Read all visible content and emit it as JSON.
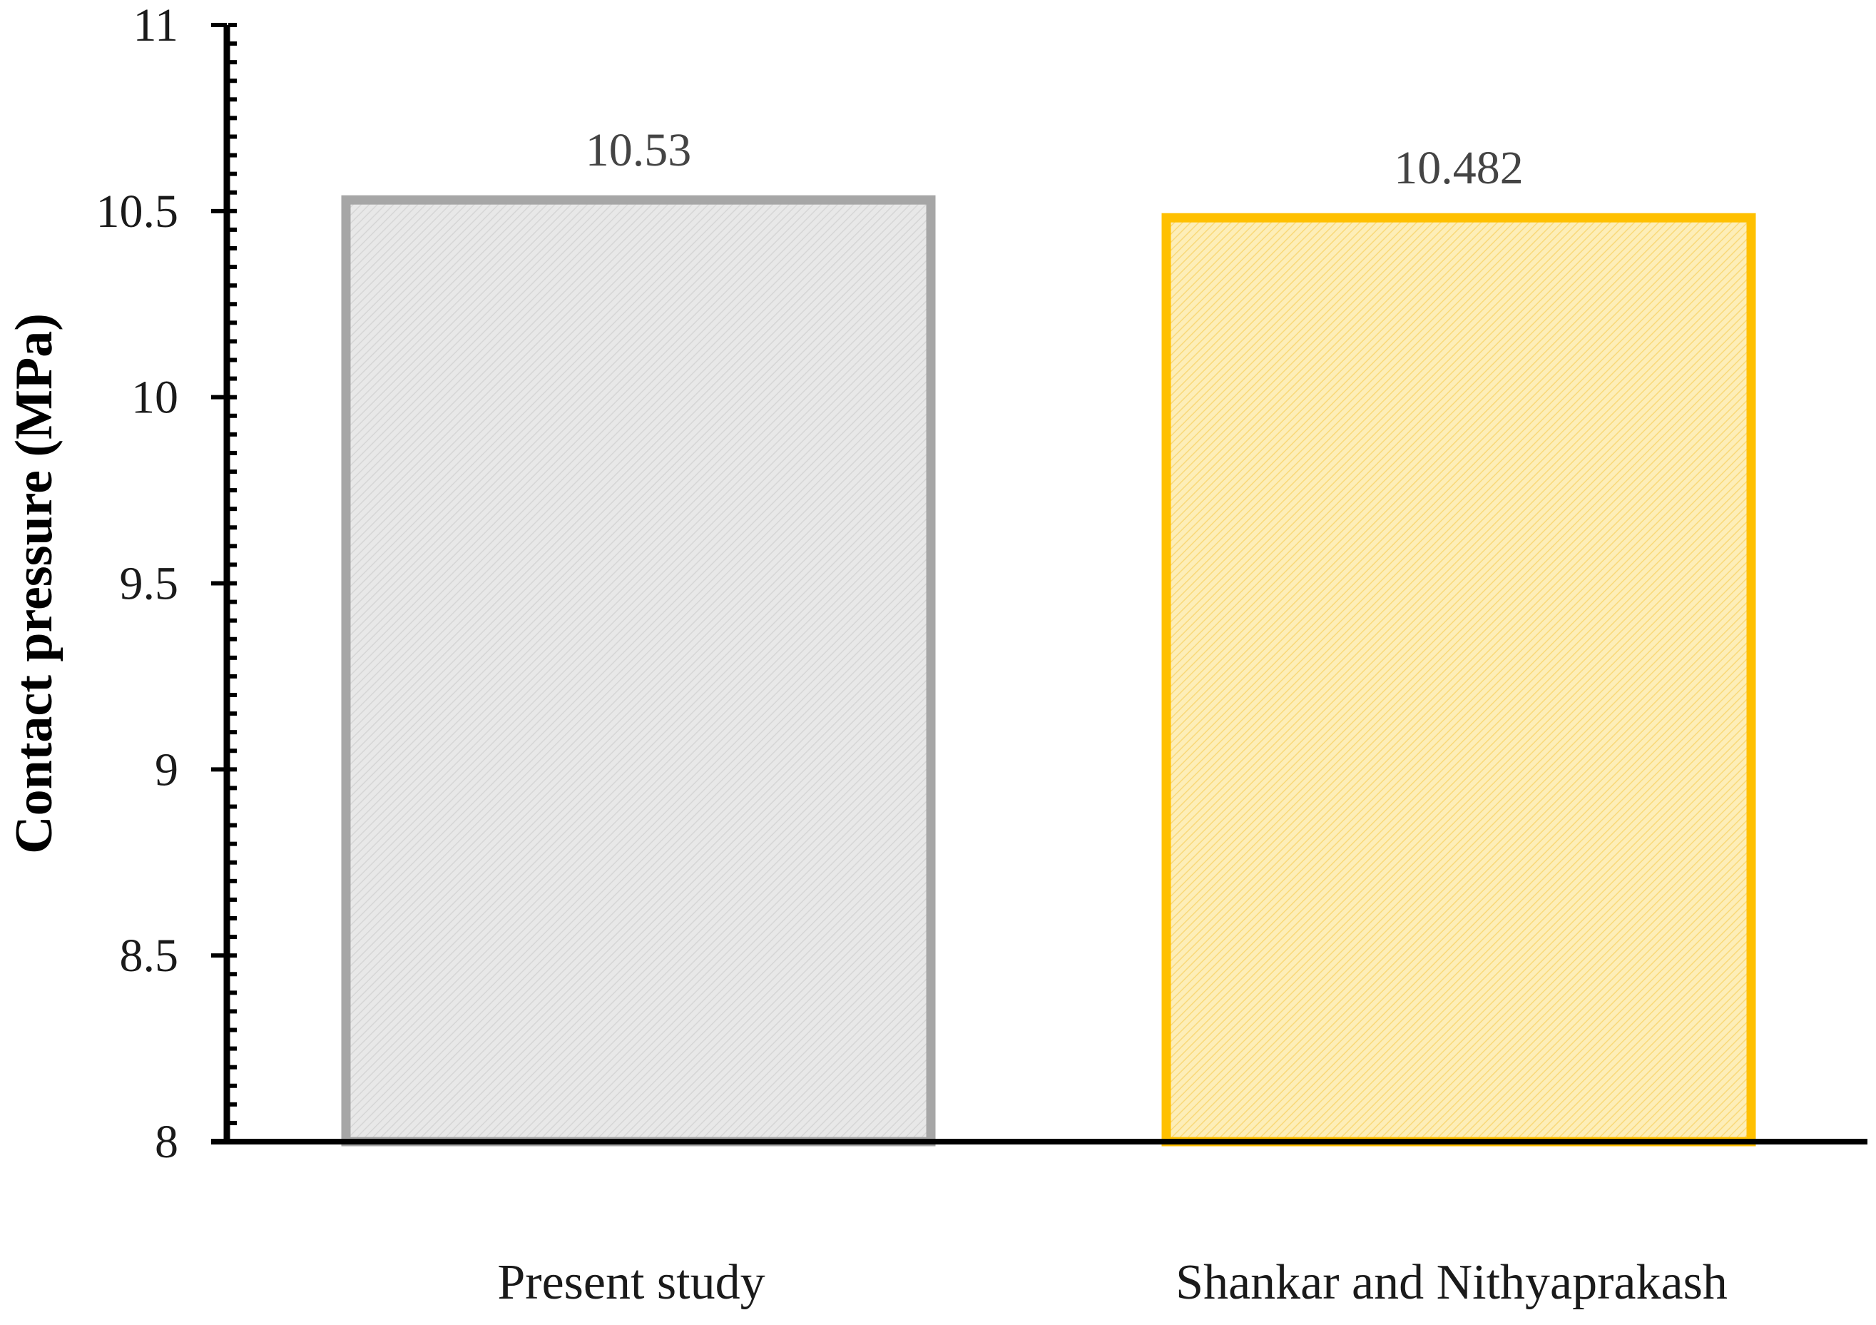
{
  "chart_data": {
    "type": "bar",
    "title": "",
    "xlabel": "",
    "ylabel": "Contact pressure (MPa)",
    "categories": [
      "Present study",
      "Shankar and Nithyaprakash"
    ],
    "values": [
      10.53,
      10.482
    ],
    "value_labels": [
      "10.53",
      "10.482"
    ],
    "ylim": [
      8,
      11
    ],
    "yticks": [
      8,
      8.5,
      9,
      9.5,
      10,
      10.5,
      11
    ],
    "ytick_labels": [
      "8",
      "8.5",
      "9",
      "9.5",
      "10",
      "10.5",
      "11"
    ],
    "bar_colors": [
      {
        "fill": "#e6e6e6",
        "stroke": "#a6a6a6"
      },
      {
        "fill": "#fde9a8",
        "stroke": "#ffc000"
      }
    ],
    "grid": false,
    "legend": "none"
  }
}
